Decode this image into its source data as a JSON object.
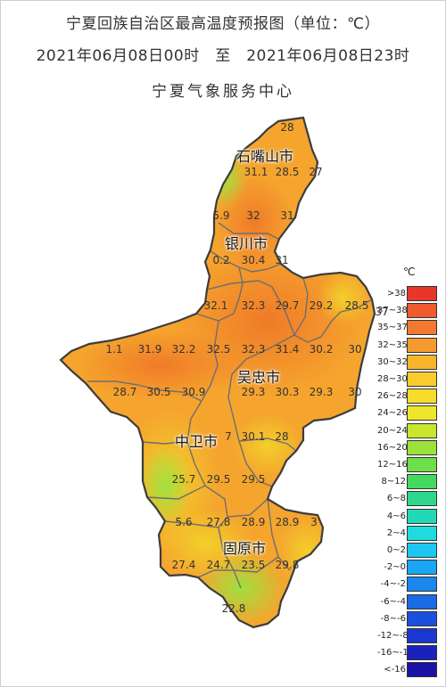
{
  "title_line1": "宁夏回族自治区最高温度预报图（单位：℃）",
  "title_line2": "2021年06月08日00时　至　2021年06月08日23时",
  "title_line3": "宁夏气象服务中心",
  "legend": {
    "unit": "℃",
    "items": [
      {
        "label": ">38",
        "color": "#e8362a"
      },
      {
        "label": "37~38",
        "color": "#ef5a2e"
      },
      {
        "label": "35~37",
        "color": "#f27a30"
      },
      {
        "label": "32~35",
        "color": "#f59a30"
      },
      {
        "label": "30~32",
        "color": "#f7b52c"
      },
      {
        "label": "28~30",
        "color": "#f8cb2e"
      },
      {
        "label": "26~28",
        "color": "#f6dc2c"
      },
      {
        "label": "24~26",
        "color": "#eee62b"
      },
      {
        "label": "20~24",
        "color": "#c8e62e"
      },
      {
        "label": "16~20",
        "color": "#9be33a"
      },
      {
        "label": "12~16",
        "color": "#6ddf48"
      },
      {
        "label": "8~12",
        "color": "#45d860"
      },
      {
        "label": "6~8",
        "color": "#2dd88c"
      },
      {
        "label": "4~6",
        "color": "#22d9b7"
      },
      {
        "label": "2~4",
        "color": "#1fdbe0"
      },
      {
        "label": "0~2",
        "color": "#1cc7f2"
      },
      {
        "label": "-2~0",
        "color": "#1aa6f2"
      },
      {
        "label": "-4~-2",
        "color": "#1a86ee"
      },
      {
        "label": "-6~-4",
        "color": "#1a6ae6"
      },
      {
        "label": "-8~-6",
        "color": "#1a50dc"
      },
      {
        "label": "-12~-8",
        "color": "#1a38cf"
      },
      {
        "label": "-16~-12",
        "color": "#1a22bd"
      },
      {
        "label": "<-16",
        "color": "#1a12a6"
      }
    ]
  },
  "cities": [
    {
      "name": "石嘴山市"
    },
    {
      "name": "银川市"
    },
    {
      "name": "吴忠市"
    },
    {
      "name": "中卫市"
    },
    {
      "name": "固原市"
    }
  ],
  "values": [
    "28",
    "31.1",
    "28.5",
    "27",
    "5.9",
    "32",
    "31",
    "0.2",
    "30.4",
    "31",
    "32.1",
    "32.3",
    "29.7",
    "29.2",
    "28.5",
    "37",
    "1.1",
    "31.9",
    "32.2",
    "32.5",
    "32.3",
    "31.4",
    "30.2",
    "30",
    "28.7",
    "30.5",
    "30.9",
    "29.3",
    "30.3",
    "29.3",
    "30",
    "7",
    "30.1",
    "28",
    "25.7",
    "29.5",
    "29.5",
    "5.6",
    "27.8",
    "28.9",
    "28.9",
    "3",
    "27.4",
    "24.7",
    "23.5",
    "29.8",
    "22.8"
  ]
}
